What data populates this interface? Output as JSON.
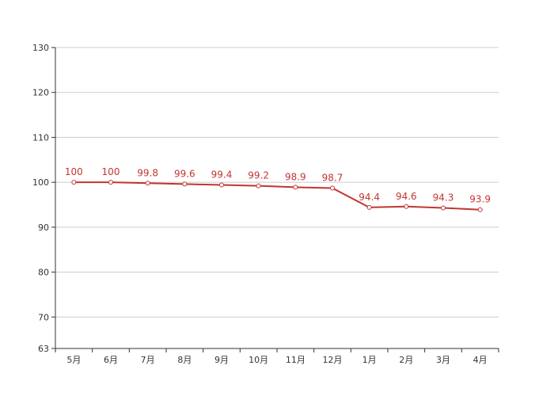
{
  "chart_data": {
    "type": "line",
    "title": "",
    "xlabel": "",
    "ylabel": "",
    "categories": [
      "5月",
      "6月",
      "7月",
      "8月",
      "9月",
      "10月",
      "11月",
      "12月",
      "1月",
      "2月",
      "3月",
      "4月"
    ],
    "series": [
      {
        "values": [
          100,
          100,
          99.8,
          99.6,
          99.4,
          99.2,
          98.9,
          98.7,
          94.4,
          94.6,
          94.3,
          93.9
        ]
      }
    ],
    "ylim": [
      63,
      130
    ],
    "yticks": [
      63,
      70,
      80,
      90,
      100,
      110,
      120,
      130
    ],
    "grid": true,
    "legend": "none",
    "colors": {
      "series": "#c23531",
      "grid": "#cccccc",
      "axis": "#333333"
    }
  }
}
